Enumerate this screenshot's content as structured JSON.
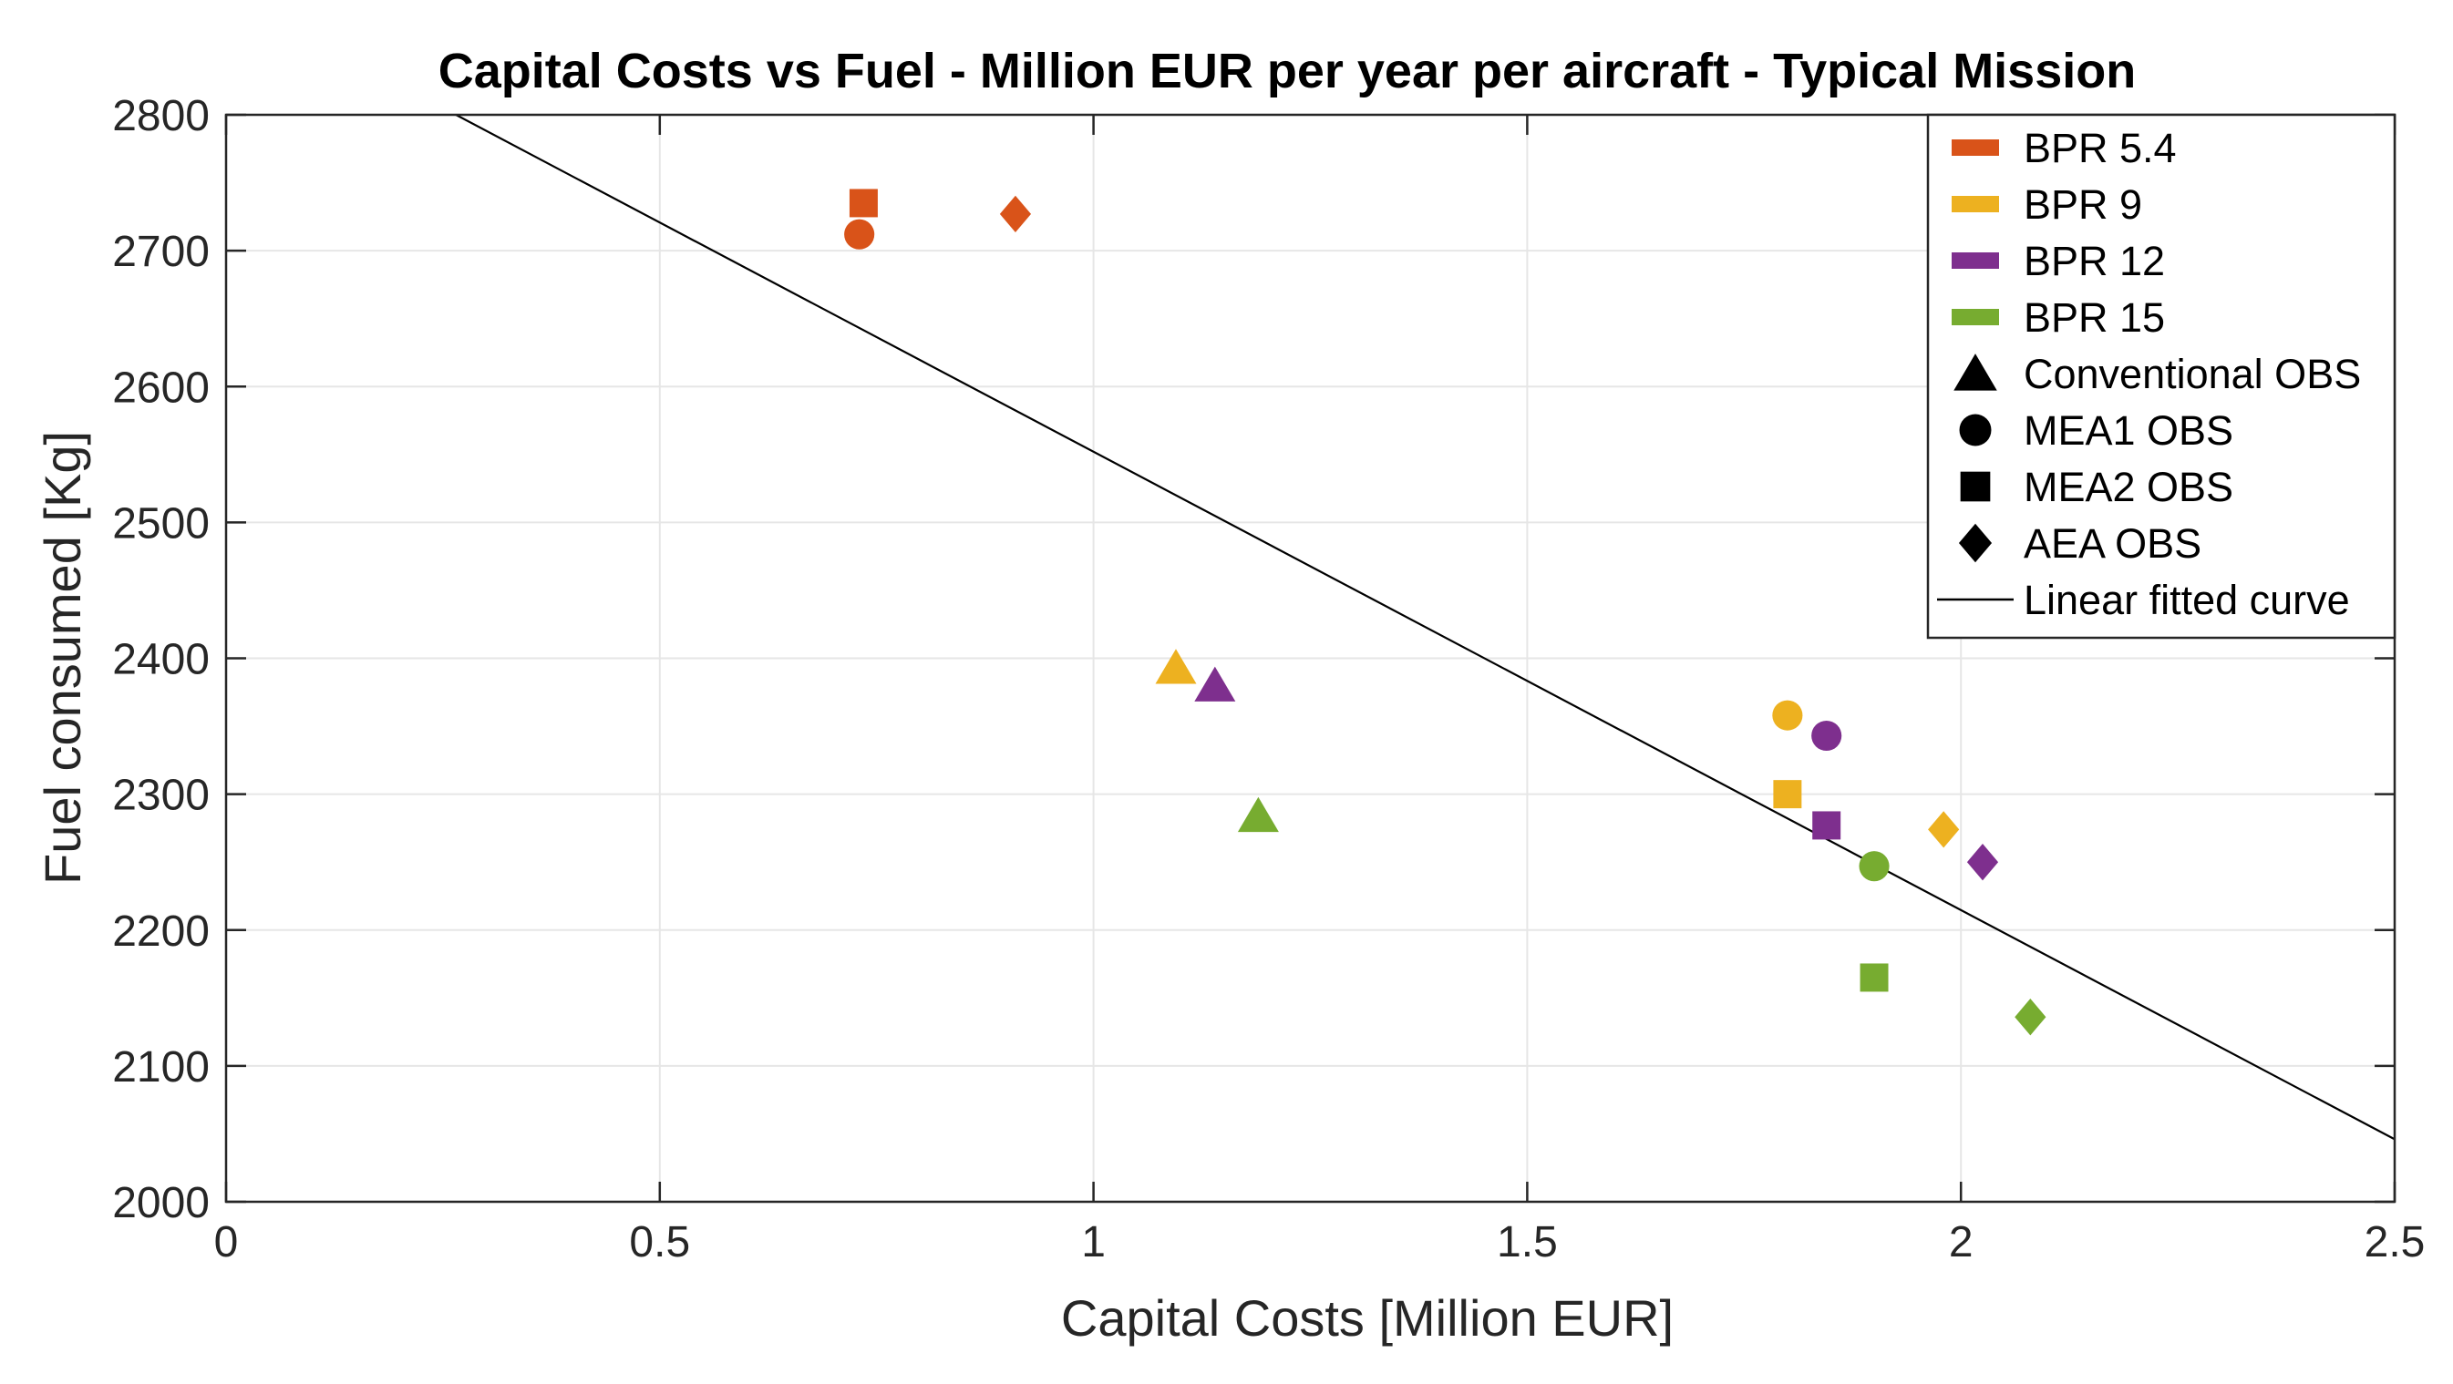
{
  "chart_data": {
    "type": "scatter",
    "title": "Capital Costs vs Fuel - Million EUR per year per aircraft - Typical Mission",
    "xlabel": "Capital Costs [Million EUR]",
    "ylabel": "Fuel consumed [Kg]",
    "xlim": [
      0,
      2.5
    ],
    "ylim": [
      2000,
      2800
    ],
    "xticks": [
      0,
      0.5,
      1,
      1.5,
      2,
      2.5
    ],
    "xtick_labels": [
      "0",
      "0.5",
      "1",
      "1.5",
      "2",
      "2.5"
    ],
    "yticks": [
      2000,
      2100,
      2200,
      2300,
      2400,
      2500,
      2600,
      2700,
      2800
    ],
    "ytick_labels": [
      "2000",
      "2100",
      "2200",
      "2300",
      "2400",
      "2500",
      "2600",
      "2700",
      "2800"
    ],
    "grid": true,
    "legend_position": "top-right",
    "colors": {
      "bpr_5_4": "#D95319",
      "bpr_9": "#EDB120",
      "bpr_12": "#7E2F8E",
      "bpr_15": "#77AC30",
      "fit_line": "#000000",
      "grid": "#E6E6E6",
      "axes": "#262626"
    },
    "series": [
      {
        "name": "BPR 5.4",
        "color_key": "bpr_5_4",
        "points": [
          {
            "config": "MEA1 OBS",
            "marker": "circle",
            "x": 0.73,
            "y": 2712
          },
          {
            "config": "MEA2 OBS",
            "marker": "square",
            "x": 0.735,
            "y": 2735
          },
          {
            "config": "AEA OBS",
            "marker": "diamond",
            "x": 0.91,
            "y": 2727
          }
        ]
      },
      {
        "name": "BPR 9",
        "color_key": "bpr_9",
        "points": [
          {
            "config": "Conventional OBS",
            "marker": "triangle",
            "x": 1.095,
            "y": 2393
          },
          {
            "config": "MEA1 OBS",
            "marker": "circle",
            "x": 1.8,
            "y": 2358
          },
          {
            "config": "MEA2 OBS",
            "marker": "square",
            "x": 1.8,
            "y": 2300
          },
          {
            "config": "AEA OBS",
            "marker": "diamond",
            "x": 1.98,
            "y": 2274
          }
        ]
      },
      {
        "name": "BPR 12",
        "color_key": "bpr_12",
        "points": [
          {
            "config": "Conventional OBS",
            "marker": "triangle",
            "x": 1.14,
            "y": 2380
          },
          {
            "config": "MEA1 OBS",
            "marker": "circle",
            "x": 1.845,
            "y": 2343
          },
          {
            "config": "MEA2 OBS",
            "marker": "square",
            "x": 1.845,
            "y": 2277
          },
          {
            "config": "AEA OBS",
            "marker": "diamond",
            "x": 2.025,
            "y": 2250
          }
        ]
      },
      {
        "name": "BPR 15",
        "color_key": "bpr_15",
        "points": [
          {
            "config": "Conventional OBS",
            "marker": "triangle",
            "x": 1.19,
            "y": 2284
          },
          {
            "config": "MEA1 OBS",
            "marker": "circle",
            "x": 1.9,
            "y": 2247
          },
          {
            "config": "MEA2 OBS",
            "marker": "square",
            "x": 1.9,
            "y": 2165
          },
          {
            "config": "AEA OBS",
            "marker": "diamond",
            "x": 2.08,
            "y": 2136
          }
        ]
      }
    ],
    "fit_line": {
      "name": "Linear fitted curve",
      "x": [
        0.265,
        2.5
      ],
      "y": [
        2800,
        2046
      ]
    },
    "legend": [
      {
        "label": "BPR 5.4",
        "kind": "color",
        "color_key": "bpr_5_4"
      },
      {
        "label": "BPR 9",
        "kind": "color",
        "color_key": "bpr_9"
      },
      {
        "label": "BPR 12",
        "kind": "color",
        "color_key": "bpr_12"
      },
      {
        "label": "BPR 15",
        "kind": "color",
        "color_key": "bpr_15"
      },
      {
        "label": "Conventional OBS",
        "kind": "marker",
        "marker": "triangle"
      },
      {
        "label": "MEA1 OBS",
        "kind": "marker",
        "marker": "circle"
      },
      {
        "label": "MEA2 OBS",
        "kind": "marker",
        "marker": "square"
      },
      {
        "label": "AEA OBS",
        "kind": "marker",
        "marker": "diamond"
      },
      {
        "label": "Linear fitted curve",
        "kind": "line"
      }
    ]
  }
}
